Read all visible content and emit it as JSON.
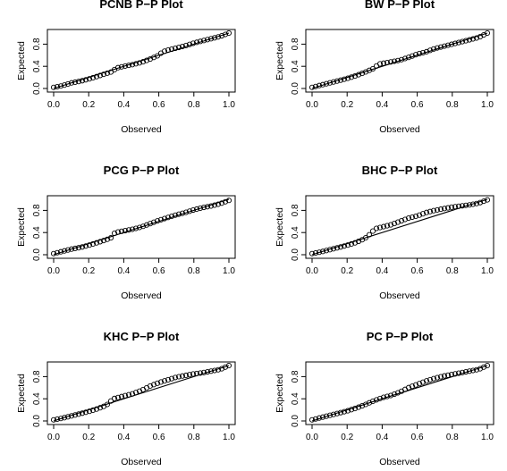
{
  "figure": {
    "layout": "3 rows x 2 columns"
  },
  "chart_data": [
    {
      "type": "scatter",
      "title": "PCNB P−P Plot",
      "xlabel": "Observed",
      "ylabel": "Expected",
      "xlim": [
        0,
        1
      ],
      "ylim": [
        0,
        1
      ],
      "xticks": [
        "0.0",
        "0.2",
        "0.4",
        "0.6",
        "0.8",
        "1.0"
      ],
      "yticks": [
        "0.0",
        "0.4",
        "0.8"
      ],
      "reference_line": "y = x",
      "curve": [
        [
          0,
          0.02
        ],
        [
          0.05,
          0.05
        ],
        [
          0.1,
          0.1
        ],
        [
          0.15,
          0.13
        ],
        [
          0.2,
          0.17
        ],
        [
          0.25,
          0.22
        ],
        [
          0.3,
          0.27
        ],
        [
          0.33,
          0.3
        ],
        [
          0.36,
          0.37
        ],
        [
          0.4,
          0.4
        ],
        [
          0.45,
          0.43
        ],
        [
          0.5,
          0.47
        ],
        [
          0.55,
          0.53
        ],
        [
          0.6,
          0.6
        ],
        [
          0.62,
          0.66
        ],
        [
          0.65,
          0.69
        ],
        [
          0.7,
          0.73
        ],
        [
          0.75,
          0.77
        ],
        [
          0.8,
          0.82
        ],
        [
          0.85,
          0.86
        ],
        [
          0.9,
          0.9
        ],
        [
          0.95,
          0.94
        ],
        [
          1,
          1
        ]
      ]
    },
    {
      "type": "scatter",
      "title": "BW P−P Plot",
      "xlabel": "Observed",
      "ylabel": "Expected",
      "xlim": [
        0,
        1
      ],
      "ylim": [
        0,
        1
      ],
      "xticks": [
        "0.0",
        "0.2",
        "0.4",
        "0.6",
        "0.8",
        "1.0"
      ],
      "yticks": [
        "0.0",
        "0.4",
        "0.8"
      ],
      "reference_line": "y = x",
      "curve": [
        [
          0,
          0.02
        ],
        [
          0.05,
          0.06
        ],
        [
          0.1,
          0.1
        ],
        [
          0.15,
          0.14
        ],
        [
          0.2,
          0.18
        ],
        [
          0.25,
          0.23
        ],
        [
          0.3,
          0.29
        ],
        [
          0.35,
          0.36
        ],
        [
          0.38,
          0.44
        ],
        [
          0.45,
          0.48
        ],
        [
          0.5,
          0.51
        ],
        [
          0.55,
          0.56
        ],
        [
          0.6,
          0.62
        ],
        [
          0.65,
          0.66
        ],
        [
          0.7,
          0.72
        ],
        [
          0.75,
          0.76
        ],
        [
          0.8,
          0.8
        ],
        [
          0.85,
          0.84
        ],
        [
          0.9,
          0.88
        ],
        [
          0.95,
          0.92
        ],
        [
          1,
          1
        ]
      ]
    },
    {
      "type": "scatter",
      "title": "PCG P−P Plot",
      "xlabel": "Observed",
      "ylabel": "Expected",
      "xlim": [
        0,
        1
      ],
      "ylim": [
        0,
        1
      ],
      "xticks": [
        "0.0",
        "0.2",
        "0.4",
        "0.6",
        "0.8",
        "1.0"
      ],
      "yticks": [
        "0.0",
        "0.4",
        "0.8"
      ],
      "reference_line": "y = x",
      "curve": [
        [
          0,
          0.02
        ],
        [
          0.05,
          0.06
        ],
        [
          0.1,
          0.1
        ],
        [
          0.15,
          0.13
        ],
        [
          0.2,
          0.17
        ],
        [
          0.25,
          0.22
        ],
        [
          0.3,
          0.27
        ],
        [
          0.33,
          0.31
        ],
        [
          0.35,
          0.4
        ],
        [
          0.4,
          0.43
        ],
        [
          0.45,
          0.46
        ],
        [
          0.5,
          0.5
        ],
        [
          0.55,
          0.56
        ],
        [
          0.6,
          0.62
        ],
        [
          0.65,
          0.67
        ],
        [
          0.7,
          0.72
        ],
        [
          0.75,
          0.76
        ],
        [
          0.8,
          0.81
        ],
        [
          0.85,
          0.85
        ],
        [
          0.9,
          0.88
        ],
        [
          0.95,
          0.92
        ],
        [
          1,
          0.98
        ]
      ]
    },
    {
      "type": "scatter",
      "title": "BHC P−P Plot",
      "xlabel": "Observed",
      "ylabel": "Expected",
      "xlim": [
        0,
        1
      ],
      "ylim": [
        0,
        1
      ],
      "xticks": [
        "0.0",
        "0.2",
        "0.4",
        "0.6",
        "0.8",
        "1.0"
      ],
      "yticks": [
        "0.0",
        "0.4",
        "0.8"
      ],
      "reference_line": "y = x",
      "curve": [
        [
          0,
          0.02
        ],
        [
          0.05,
          0.05
        ],
        [
          0.1,
          0.09
        ],
        [
          0.15,
          0.13
        ],
        [
          0.2,
          0.17
        ],
        [
          0.25,
          0.22
        ],
        [
          0.3,
          0.29
        ],
        [
          0.33,
          0.37
        ],
        [
          0.36,
          0.47
        ],
        [
          0.4,
          0.5
        ],
        [
          0.45,
          0.54
        ],
        [
          0.5,
          0.6
        ],
        [
          0.55,
          0.66
        ],
        [
          0.6,
          0.7
        ],
        [
          0.65,
          0.76
        ],
        [
          0.7,
          0.8
        ],
        [
          0.75,
          0.83
        ],
        [
          0.8,
          0.86
        ],
        [
          0.85,
          0.88
        ],
        [
          0.9,
          0.9
        ],
        [
          0.95,
          0.93
        ],
        [
          1,
          0.99
        ]
      ]
    },
    {
      "type": "scatter",
      "title": "KHC P−P Plot",
      "xlabel": "Observed",
      "ylabel": "Expected",
      "xlim": [
        0,
        1
      ],
      "ylim": [
        0,
        1
      ],
      "xticks": [
        "0.0",
        "0.2",
        "0.4",
        "0.6",
        "0.8",
        "1.0"
      ],
      "yticks": [
        "0.0",
        "0.4",
        "0.8"
      ],
      "reference_line": "y = x",
      "curve": [
        [
          0,
          0.02
        ],
        [
          0.05,
          0.05
        ],
        [
          0.1,
          0.09
        ],
        [
          0.15,
          0.13
        ],
        [
          0.2,
          0.17
        ],
        [
          0.25,
          0.22
        ],
        [
          0.3,
          0.28
        ],
        [
          0.34,
          0.4
        ],
        [
          0.4,
          0.45
        ],
        [
          0.45,
          0.49
        ],
        [
          0.5,
          0.55
        ],
        [
          0.55,
          0.63
        ],
        [
          0.6,
          0.69
        ],
        [
          0.65,
          0.74
        ],
        [
          0.7,
          0.79
        ],
        [
          0.75,
          0.82
        ],
        [
          0.8,
          0.85
        ],
        [
          0.85,
          0.87
        ],
        [
          0.9,
          0.9
        ],
        [
          0.95,
          0.93
        ],
        [
          1,
          1
        ]
      ]
    },
    {
      "type": "scatter",
      "title": "PC P−P Plot",
      "xlabel": "Observed",
      "ylabel": "Expected",
      "xlim": [
        0,
        1
      ],
      "ylim": [
        0,
        1
      ],
      "xticks": [
        "0.0",
        "0.2",
        "0.4",
        "0.6",
        "0.8",
        "1.0"
      ],
      "yticks": [
        "0.0",
        "0.4",
        "0.8"
      ],
      "reference_line": "y = x",
      "curve": [
        [
          0,
          0.02
        ],
        [
          0.05,
          0.06
        ],
        [
          0.1,
          0.1
        ],
        [
          0.15,
          0.14
        ],
        [
          0.2,
          0.18
        ],
        [
          0.25,
          0.23
        ],
        [
          0.3,
          0.29
        ],
        [
          0.35,
          0.36
        ],
        [
          0.4,
          0.42
        ],
        [
          0.45,
          0.46
        ],
        [
          0.5,
          0.52
        ],
        [
          0.55,
          0.6
        ],
        [
          0.6,
          0.66
        ],
        [
          0.65,
          0.72
        ],
        [
          0.7,
          0.77
        ],
        [
          0.75,
          0.81
        ],
        [
          0.8,
          0.84
        ],
        [
          0.85,
          0.87
        ],
        [
          0.9,
          0.9
        ],
        [
          0.95,
          0.93
        ],
        [
          1,
          1
        ]
      ]
    }
  ]
}
